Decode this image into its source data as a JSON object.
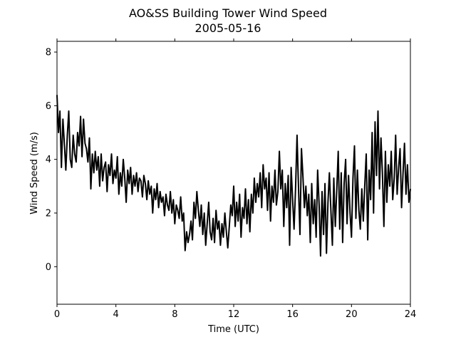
{
  "chart_data": {
    "type": "line",
    "title": "AO&SS Building Tower Wind Speed",
    "subtitle": "2005-05-16",
    "xlabel": "Time (UTC)",
    "ylabel": "Wind Speed (m/s)",
    "xlim": [
      0,
      24
    ],
    "ylim": [
      -1.4,
      8.4
    ],
    "x_ticks": [
      0,
      4,
      8,
      12,
      16,
      20,
      24
    ],
    "y_ticks": [
      0,
      2,
      4,
      6,
      8
    ],
    "grid": false,
    "legend": "none",
    "line_color": "#000000",
    "series": [
      {
        "x": [
          0.0,
          0.1,
          0.2,
          0.3,
          0.4,
          0.5,
          0.6,
          0.7,
          0.8,
          0.9,
          1.0,
          1.1,
          1.2,
          1.3,
          1.4,
          1.5,
          1.6,
          1.7,
          1.8,
          1.9,
          2.0,
          2.1,
          2.2,
          2.3,
          2.4,
          2.5,
          2.6,
          2.7,
          2.8,
          2.9,
          3.0,
          3.1,
          3.2,
          3.3,
          3.4,
          3.5,
          3.6,
          3.7,
          3.8,
          3.9,
          4.0,
          4.1,
          4.2,
          4.3,
          4.4,
          4.5,
          4.6,
          4.7,
          4.8,
          4.9,
          5.0,
          5.1,
          5.2,
          5.3,
          5.4,
          5.5,
          5.6,
          5.7,
          5.8,
          5.9,
          6.0,
          6.1,
          6.2,
          6.3,
          6.4,
          6.5,
          6.6,
          6.7,
          6.8,
          6.9,
          7.0,
          7.1,
          7.2,
          7.3,
          7.4,
          7.5,
          7.6,
          7.7,
          7.8,
          7.9,
          8.0,
          8.1,
          8.2,
          8.3,
          8.4,
          8.5,
          8.6,
          8.7,
          8.8,
          8.9,
          9.0,
          9.1,
          9.2,
          9.3,
          9.4,
          9.5,
          9.6,
          9.7,
          9.8,
          9.9,
          10.0,
          10.1,
          10.2,
          10.3,
          10.4,
          10.5,
          10.6,
          10.7,
          10.8,
          10.9,
          11.0,
          11.1,
          11.2,
          11.3,
          11.4,
          11.5,
          11.6,
          11.7,
          11.8,
          11.9,
          12.0,
          12.1,
          12.2,
          12.3,
          12.4,
          12.5,
          12.6,
          12.7,
          12.8,
          12.9,
          13.0,
          13.1,
          13.2,
          13.3,
          13.4,
          13.5,
          13.6,
          13.7,
          13.8,
          13.9,
          14.0,
          14.1,
          14.2,
          14.3,
          14.4,
          14.5,
          14.6,
          14.7,
          14.8,
          14.9,
          15.0,
          15.1,
          15.2,
          15.3,
          15.4,
          15.5,
          15.6,
          15.7,
          15.8,
          15.9,
          16.0,
          16.1,
          16.2,
          16.3,
          16.4,
          16.5,
          16.6,
          16.7,
          16.8,
          16.9,
          17.0,
          17.1,
          17.2,
          17.3,
          17.4,
          17.5,
          17.6,
          17.7,
          17.8,
          17.9,
          18.0,
          18.1,
          18.2,
          18.3,
          18.4,
          18.5,
          18.6,
          18.7,
          18.8,
          18.9,
          19.0,
          19.1,
          19.2,
          19.3,
          19.4,
          19.5,
          19.6,
          19.7,
          19.8,
          19.9,
          20.0,
          20.1,
          20.2,
          20.3,
          20.4,
          20.5,
          20.6,
          20.7,
          20.8,
          20.9,
          21.0,
          21.1,
          21.2,
          21.3,
          21.4,
          21.5,
          21.6,
          21.7,
          21.8,
          21.9,
          22.0,
          22.1,
          22.2,
          22.3,
          22.4,
          22.5,
          22.6,
          22.7,
          22.8,
          22.9,
          23.0,
          23.1,
          23.2,
          23.3,
          23.4,
          23.5,
          23.6,
          23.7,
          23.8,
          23.9,
          24.0
        ],
        "values": [
          6.4,
          5.0,
          5.8,
          3.7,
          5.5,
          4.6,
          3.6,
          4.9,
          5.8,
          4.0,
          3.7,
          4.9,
          4.2,
          3.9,
          5.0,
          4.5,
          5.6,
          4.1,
          5.5,
          4.6,
          4.4,
          3.9,
          4.8,
          2.9,
          4.2,
          3.5,
          4.3,
          3.6,
          4.1,
          3.0,
          4.2,
          3.2,
          3.7,
          3.9,
          2.8,
          3.8,
          3.4,
          4.2,
          3.1,
          3.6,
          3.3,
          4.1,
          2.7,
          3.5,
          3.0,
          4.0,
          3.3,
          2.4,
          3.6,
          3.1,
          3.7,
          2.7,
          3.4,
          3.0,
          3.5,
          2.8,
          3.3,
          3.2,
          2.6,
          3.4,
          3.1,
          2.5,
          3.2,
          2.7,
          3.0,
          2.0,
          2.9,
          2.5,
          3.1,
          2.2,
          2.8,
          2.4,
          2.6,
          1.9,
          2.7,
          2.3,
          2.1,
          2.8,
          2.0,
          2.5,
          1.6,
          2.3,
          2.1,
          1.8,
          2.6,
          1.7,
          2.0,
          0.6,
          1.3,
          0.9,
          1.2,
          1.7,
          1.0,
          2.4,
          1.8,
          2.8,
          2.1,
          1.5,
          2.3,
          1.2,
          2.0,
          0.8,
          1.6,
          2.4,
          1.3,
          1.0,
          1.8,
          0.9,
          2.1,
          1.4,
          1.7,
          0.8,
          1.6,
          1.1,
          2.0,
          1.3,
          0.7,
          1.5,
          2.3,
          1.9,
          3.0,
          1.5,
          2.4,
          1.7,
          2.7,
          1.1,
          2.2,
          1.8,
          2.9,
          1.6,
          2.5,
          1.3,
          2.7,
          2.0,
          3.3,
          2.4,
          3.1,
          2.6,
          3.5,
          2.2,
          3.8,
          2.9,
          3.3,
          2.1,
          3.5,
          1.7,
          3.0,
          2.4,
          3.6,
          2.3,
          2.8,
          4.3,
          2.9,
          3.6,
          1.5,
          3.1,
          2.2,
          3.4,
          0.8,
          3.7,
          2.5,
          1.4,
          2.9,
          4.9,
          3.0,
          1.2,
          4.4,
          3.4,
          2.2,
          3.0,
          1.9,
          2.7,
          0.9,
          3.1,
          1.6,
          2.5,
          1.1,
          3.6,
          2.3,
          0.4,
          2.8,
          1.2,
          3.1,
          0.5,
          2.4,
          3.5,
          2.1,
          0.8,
          3.3,
          1.5,
          2.9,
          4.3,
          1.4,
          3.5,
          0.9,
          3.1,
          4.0,
          1.6,
          3.4,
          2.0,
          1.1,
          3.3,
          4.5,
          1.8,
          3.6,
          2.1,
          1.4,
          2.9,
          1.7,
          3.0,
          4.2,
          1.0,
          3.6,
          2.5,
          5.0,
          2.0,
          5.4,
          3.4,
          5.8,
          2.9,
          4.8,
          3.5,
          1.5,
          4.3,
          2.4,
          3.8,
          3.0,
          4.3,
          2.5,
          3.3,
          4.9,
          2.7,
          3.7,
          4.4,
          2.2,
          3.5,
          4.6,
          2.7,
          3.8,
          2.4,
          2.9
        ]
      }
    ]
  }
}
